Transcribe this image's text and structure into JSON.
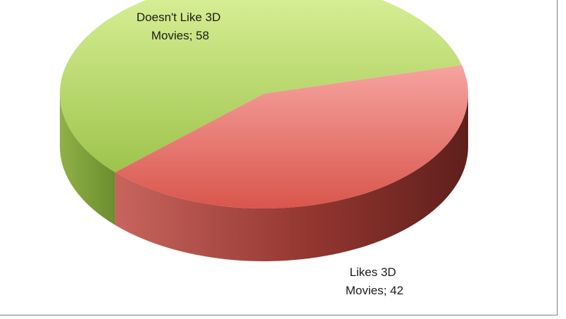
{
  "chart_data": {
    "type": "pie",
    "style": "3d",
    "title": "",
    "categories": [
      "Doesn't Like 3D Movies",
      "Likes 3D Movies"
    ],
    "values": [
      58,
      42
    ],
    "colors": [
      "#9bc24a",
      "#d9534a"
    ],
    "labels": [
      {
        "line1": "Doesn't Like 3D",
        "line2": "Movies; 58"
      },
      {
        "line1": "Likes 3D",
        "line2": "Movies; 42"
      }
    ],
    "legend": "none"
  }
}
